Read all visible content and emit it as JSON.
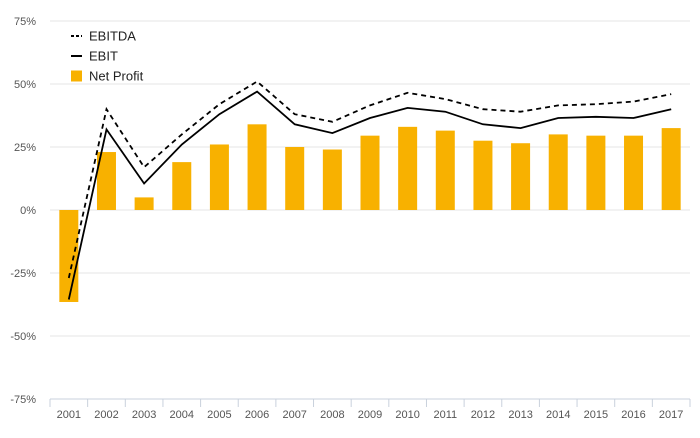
{
  "chart_data": {
    "type": "bar",
    "title": "",
    "xlabel": "",
    "ylabel": "",
    "ylim": [
      -75,
      75
    ],
    "y_unit": "%",
    "y_ticks": [
      75,
      50,
      25,
      0,
      -25,
      -50,
      -75
    ],
    "y_tick_labels": [
      "75%",
      "50%",
      "25%",
      "0%",
      "-25%",
      "-50%",
      "-75%"
    ],
    "grid": true,
    "legend_position": "top-left",
    "categories": [
      "2001",
      "2002",
      "2003",
      "2004",
      "2005",
      "2006",
      "2007",
      "2008",
      "2009",
      "2010",
      "2011",
      "2012",
      "2013",
      "2014",
      "2015",
      "2016",
      "2017"
    ],
    "series": [
      {
        "name": "EBITDA",
        "type": "line",
        "style": "dashed",
        "color": "#000000",
        "values": [
          -27,
          40,
          17,
          30,
          42,
          51,
          38,
          35,
          41.5,
          46.5,
          44,
          40,
          39,
          41.5,
          42,
          43,
          46
        ]
      },
      {
        "name": "EBIT",
        "type": "line",
        "style": "solid",
        "color": "#000000",
        "values": [
          -35.5,
          32,
          10.5,
          26,
          38,
          47,
          34,
          30.5,
          36.5,
          40.5,
          39,
          34,
          32.5,
          36.5,
          37,
          36.5,
          40
        ]
      },
      {
        "name": "Net Profit",
        "type": "bar",
        "color": "#F8B100",
        "values": [
          -36.5,
          23,
          5,
          19,
          26,
          34,
          25,
          24,
          29.5,
          33,
          31.5,
          27.5,
          26.5,
          30,
          29.5,
          29.5,
          32.5
        ]
      }
    ]
  }
}
